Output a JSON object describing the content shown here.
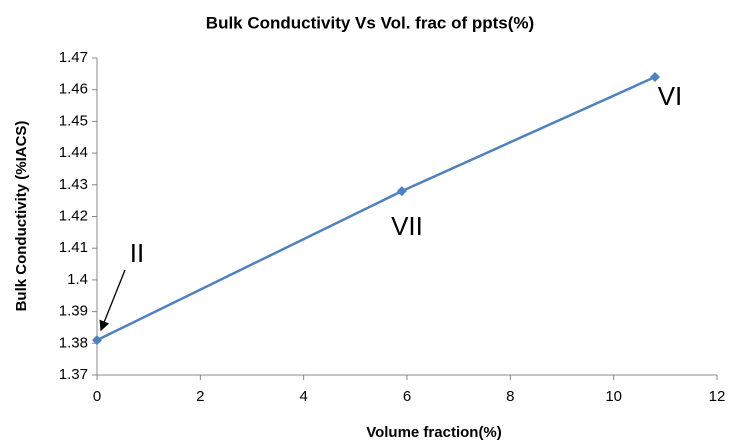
{
  "chart_data": {
    "type": "line",
    "title": "Bulk Conductivity Vs Vol. frac of ppts(%)",
    "xlabel": "Volume fraction(%)",
    "ylabel": "Bulk Conductivity (%IACS)",
    "x": [
      0,
      5.9,
      10.8
    ],
    "values": [
      1.381,
      1.428,
      1.464
    ],
    "color": "#4f81bd",
    "xlim": [
      0,
      12
    ],
    "xticks": [
      0,
      2,
      4,
      6,
      8,
      10,
      12
    ],
    "ylim": [
      1.37,
      1.47
    ],
    "yticks": [
      1.37,
      1.38,
      1.39,
      1.4,
      1.41,
      1.42,
      1.43,
      1.44,
      1.45,
      1.46,
      1.47
    ],
    "grid": false,
    "annotations": [
      "II",
      "VII",
      "VI"
    ]
  }
}
